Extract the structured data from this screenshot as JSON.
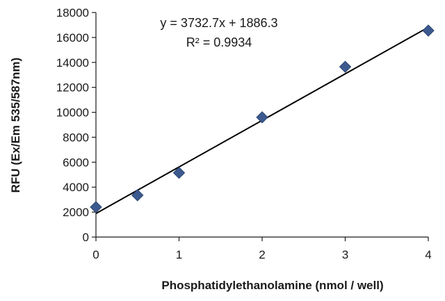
{
  "chart_data": {
    "type": "scatter",
    "title": "",
    "xlabel": "Phosphatidylethanolamine (nmol / well)",
    "ylabel": "RFU (Ex/Em 535/587nm)",
    "xlim": [
      0,
      4
    ],
    "ylim": [
      0,
      18000
    ],
    "x_ticks": [
      0,
      1,
      2,
      3,
      4
    ],
    "y_ticks": [
      0,
      2000,
      4000,
      6000,
      8000,
      10000,
      12000,
      14000,
      16000,
      18000
    ],
    "grid": false,
    "legend": "none",
    "series": [
      {
        "marker": "diamond",
        "color": "#3c5a8f",
        "points": [
          {
            "x": 0,
            "y": 2400
          },
          {
            "x": 0.5,
            "y": 3350
          },
          {
            "x": 1,
            "y": 5150
          },
          {
            "x": 2,
            "y": 9600
          },
          {
            "x": 3,
            "y": 13650
          },
          {
            "x": 4,
            "y": 16550
          }
        ]
      }
    ],
    "trendline": {
      "type": "linear",
      "slope": 3732.7,
      "intercept": 1886.3,
      "color": "#000000",
      "equation_text": "y = 3732.7x + 1886.3",
      "r2_text": "R² = 0.9934"
    }
  }
}
